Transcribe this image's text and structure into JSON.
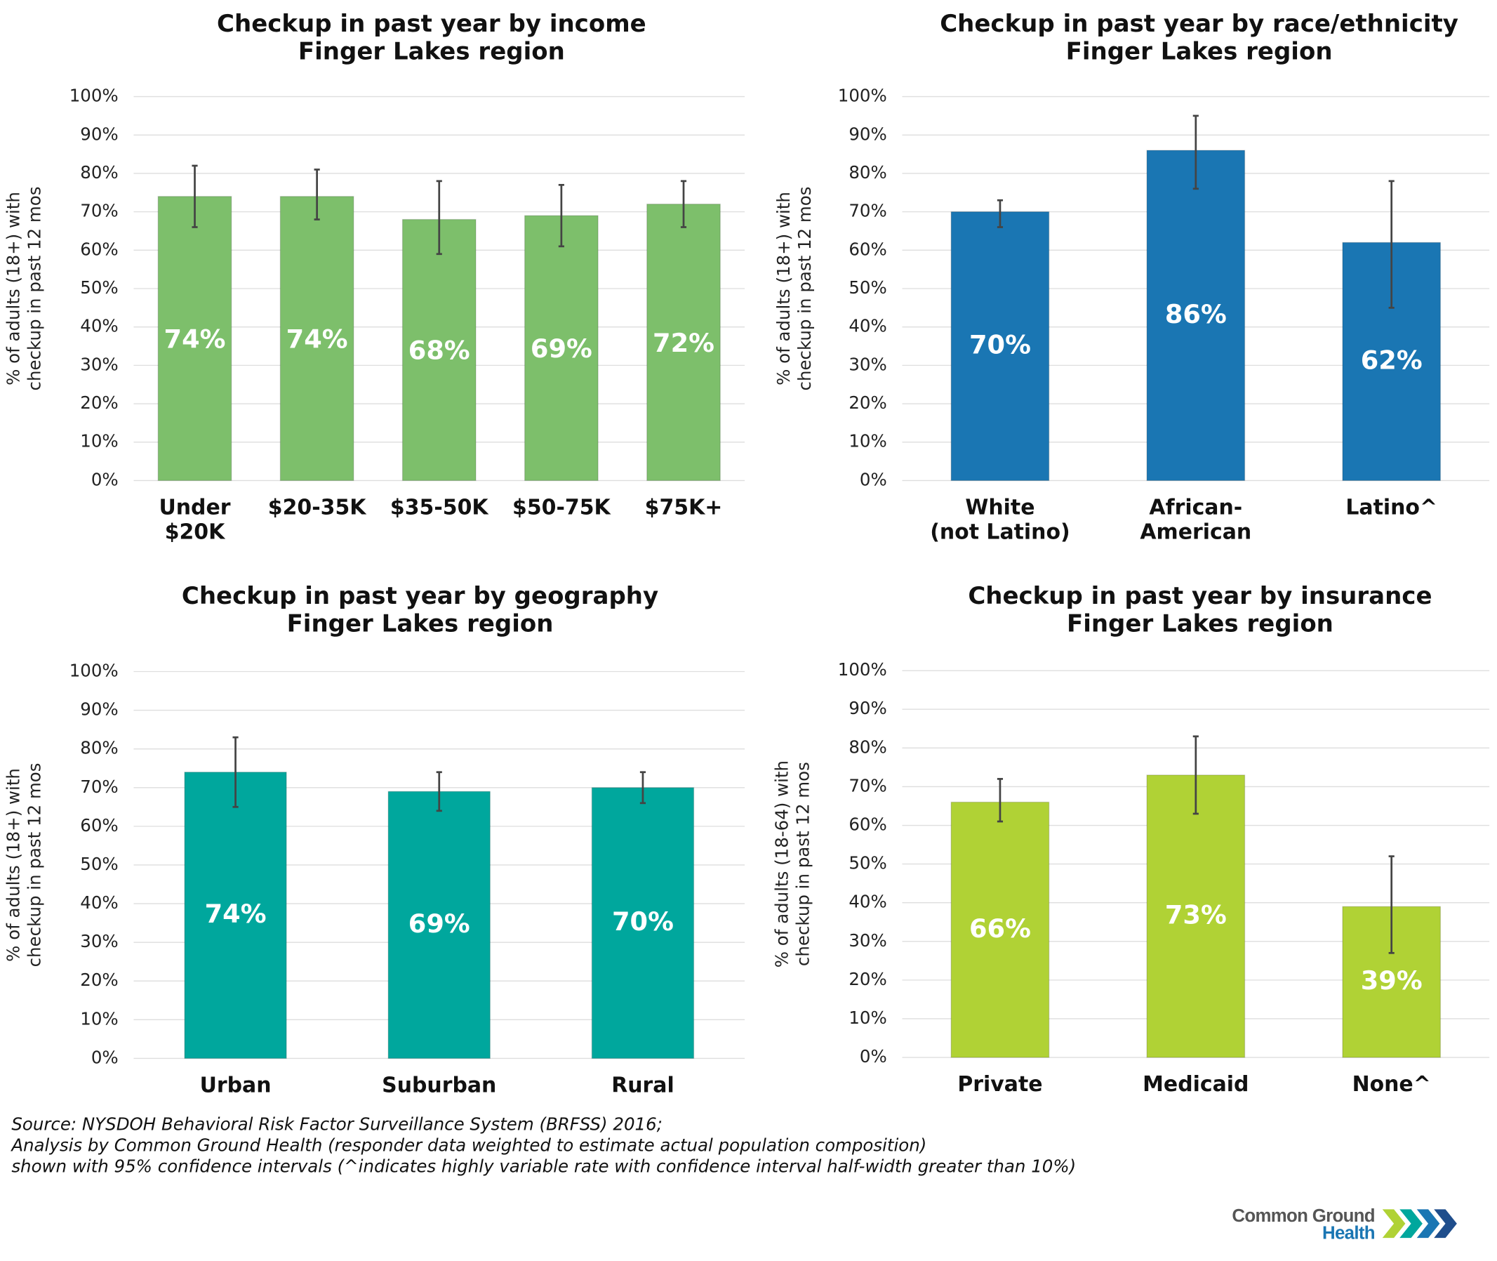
{
  "chart_data": [
    {
      "type": "bar",
      "title": "Checkup in past year by income",
      "subtitle": "Finger Lakes region",
      "ylabel": [
        "% of adults (18+) with",
        "checkup in past 12 mos"
      ],
      "categories": [
        [
          "Under",
          "$20K"
        ],
        [
          "$20-35K"
        ],
        [
          "$35-50K"
        ],
        [
          "$50-75K"
        ],
        [
          "$75K+"
        ]
      ],
      "values": [
        74,
        74,
        68,
        69,
        72
      ],
      "value_labels": [
        "74%",
        "74%",
        "68%",
        "69%",
        "72%"
      ],
      "ci_lower": [
        66,
        68,
        59,
        61,
        66
      ],
      "ci_upper": [
        82,
        81,
        78,
        77,
        78
      ],
      "color": "#7dbf6b",
      "ylim": [
        0,
        100
      ],
      "yticks": [
        {
          "value": 0,
          "label": "0%"
        },
        {
          "value": 10,
          "label": "10%"
        },
        {
          "value": 20,
          "label": "20%"
        },
        {
          "value": 30,
          "label": "30%"
        },
        {
          "value": 40,
          "label": "40%"
        },
        {
          "value": 50,
          "label": "50%"
        },
        {
          "value": 60,
          "label": "60%"
        },
        {
          "value": 70,
          "label": "70%"
        },
        {
          "value": 80,
          "label": "80%"
        },
        {
          "value": 90,
          "label": "90%"
        },
        {
          "value": 100,
          "label": "100%"
        }
      ],
      "grid": true
    },
    {
      "type": "bar",
      "title": "Checkup in past year by race/ethnicity",
      "subtitle": "Finger Lakes region",
      "ylabel": [
        "% of adults (18+) with",
        "checkup in past 12 mos"
      ],
      "categories": [
        [
          "White",
          "(not Latino)"
        ],
        [
          "African-",
          "American"
        ],
        [
          "Latino^"
        ]
      ],
      "values": [
        70,
        86,
        62
      ],
      "value_labels": [
        "70%",
        "86%",
        "62%"
      ],
      "ci_lower": [
        66,
        76,
        45
      ],
      "ci_upper": [
        73,
        95,
        78
      ],
      "color": "#1a76b3",
      "ylim": [
        0,
        100
      ],
      "yticks": [
        {
          "value": 0,
          "label": "0%"
        },
        {
          "value": 10,
          "label": "10%"
        },
        {
          "value": 20,
          "label": "20%"
        },
        {
          "value": 30,
          "label": "30%"
        },
        {
          "value": 40,
          "label": "40%"
        },
        {
          "value": 50,
          "label": "50%"
        },
        {
          "value": 60,
          "label": "60%"
        },
        {
          "value": 70,
          "label": "70%"
        },
        {
          "value": 80,
          "label": "80%"
        },
        {
          "value": 90,
          "label": "90%"
        },
        {
          "value": 100,
          "label": "100%"
        }
      ],
      "grid": true
    },
    {
      "type": "bar",
      "title": "Checkup in past year by geography",
      "subtitle": "Finger Lakes region",
      "ylabel": [
        "% of adults (18+) with",
        "checkup in past 12 mos"
      ],
      "categories": [
        [
          "Urban"
        ],
        [
          "Suburban"
        ],
        [
          "Rural"
        ]
      ],
      "values": [
        74,
        69,
        70
      ],
      "value_labels": [
        "74%",
        "69%",
        "70%"
      ],
      "ci_lower": [
        65,
        64,
        66
      ],
      "ci_upper": [
        83,
        74,
        74
      ],
      "color": "#00a79d",
      "ylim": [
        0,
        100
      ],
      "yticks": [
        {
          "value": 0,
          "label": "0%"
        },
        {
          "value": 10,
          "label": "10%"
        },
        {
          "value": 20,
          "label": "20%"
        },
        {
          "value": 30,
          "label": "30%"
        },
        {
          "value": 40,
          "label": "40%"
        },
        {
          "value": 50,
          "label": "50%"
        },
        {
          "value": 60,
          "label": "60%"
        },
        {
          "value": 70,
          "label": "70%"
        },
        {
          "value": 80,
          "label": "80%"
        },
        {
          "value": 90,
          "label": "90%"
        },
        {
          "value": 100,
          "label": "100%"
        }
      ],
      "grid": true
    },
    {
      "type": "bar",
      "title": "Checkup in past year by insurance",
      "subtitle": "Finger Lakes region",
      "ylabel": [
        "% of adults (18-64) with",
        "checkup in past 12 mos"
      ],
      "categories": [
        [
          "Private"
        ],
        [
          "Medicaid"
        ],
        [
          "None^"
        ]
      ],
      "values": [
        66,
        73,
        39
      ],
      "value_labels": [
        "66%",
        "73%",
        "39%"
      ],
      "ci_lower": [
        61,
        63,
        27
      ],
      "ci_upper": [
        72,
        83,
        52
      ],
      "color": "#b0d235",
      "ylim": [
        0,
        100
      ],
      "yticks": [
        {
          "value": 0,
          "label": "0%"
        },
        {
          "value": 10,
          "label": "10%"
        },
        {
          "value": 20,
          "label": "20%"
        },
        {
          "value": 30,
          "label": "30%"
        },
        {
          "value": 40,
          "label": "40%"
        },
        {
          "value": 50,
          "label": "50%"
        },
        {
          "value": 60,
          "label": "60%"
        },
        {
          "value": 70,
          "label": "70%"
        },
        {
          "value": 80,
          "label": "80%"
        },
        {
          "value": 90,
          "label": "90%"
        },
        {
          "value": 100,
          "label": "100%"
        }
      ],
      "grid": true
    }
  ],
  "footer": {
    "source": [
      "Source: NYSDOH Behavioral Risk Factor Surveillance System (BRFSS) 2016;",
      "Analysis by Common Ground Health (responder data weighted to estimate actual population composition)",
      "shown with 95% confidence intervals (^indicates highly variable rate with confidence interval half-width greater than 10%)"
    ],
    "logo": [
      "Common Ground",
      "Health"
    ]
  }
}
